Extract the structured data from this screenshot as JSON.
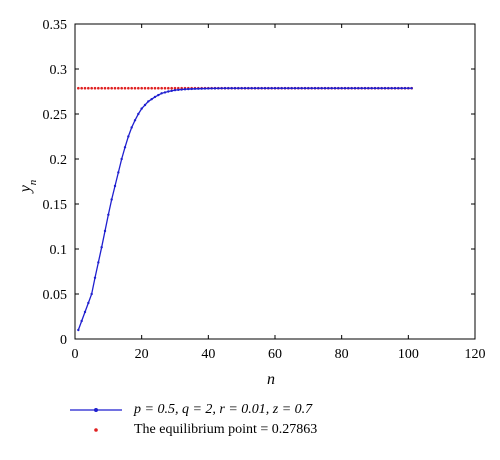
{
  "chart_data": {
    "type": "line",
    "xlabel": "n",
    "ylabel": "y",
    "ylabel_sub": "n",
    "xlim": [
      0,
      120
    ],
    "ylim": [
      0,
      0.35
    ],
    "xticks": [
      "0",
      "20",
      "40",
      "60",
      "80",
      "100",
      "120"
    ],
    "yticks": [
      "0",
      "0.05",
      "0.1",
      "0.15",
      "0.2",
      "0.25",
      "0.3",
      "0.35"
    ],
    "grid": false,
    "legend_position": "bottom",
    "series": [
      {
        "name": "p = 0.5, q = 2, r = 0.01, z = 0.7",
        "color": "#1f1fcf",
        "style": "line-with-dots",
        "x": [
          1,
          2,
          3,
          4,
          5,
          6,
          7,
          8,
          9,
          10,
          11,
          12,
          13,
          14,
          15,
          16,
          17,
          18,
          19,
          20,
          22,
          24,
          26,
          28,
          30,
          33,
          36,
          40,
          45,
          50,
          60,
          70,
          80,
          90,
          101
        ],
        "y": [
          0.01,
          0.02,
          0.03,
          0.04,
          0.05,
          0.068,
          0.085,
          0.102,
          0.12,
          0.138,
          0.155,
          0.17,
          0.185,
          0.2,
          0.213,
          0.225,
          0.235,
          0.243,
          0.25,
          0.256,
          0.264,
          0.269,
          0.273,
          0.275,
          0.2765,
          0.2775,
          0.278,
          0.2784,
          0.2786,
          0.27863,
          0.27863,
          0.27863,
          0.27863,
          0.27863,
          0.27863
        ]
      },
      {
        "name": "The equilibrium point = 0.27863",
        "color": "#e02020",
        "style": "dots",
        "value": 0.27863,
        "x_range": [
          1,
          101
        ]
      }
    ]
  }
}
